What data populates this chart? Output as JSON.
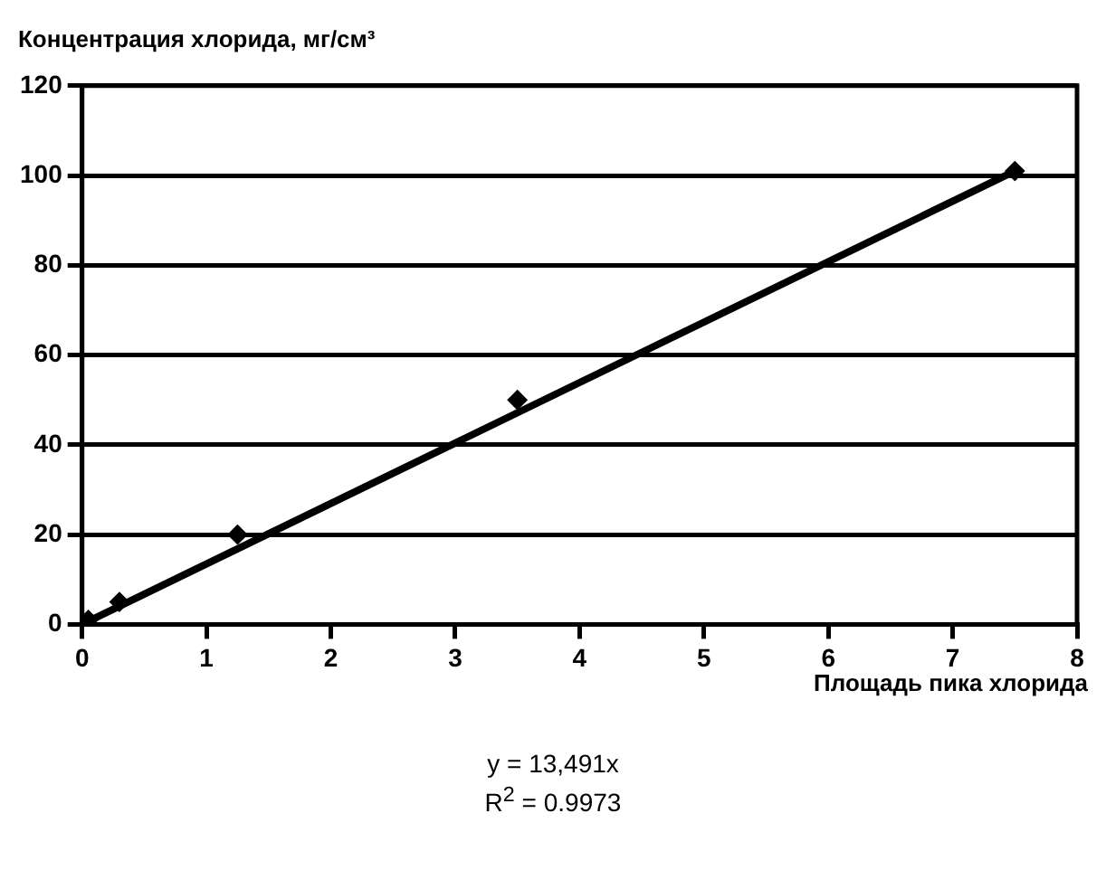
{
  "chart_data": {
    "type": "scatter",
    "ylabel": "Концентрация хлорида, мг/см³",
    "xlabel": "Площадь пика хлорида",
    "series": [
      {
        "type": "scatter",
        "color": "#000000",
        "marker": "diamond",
        "x": [
          0.05,
          0.3,
          1.25,
          3.5,
          7.5
        ],
        "values": [
          1,
          5,
          20,
          50,
          101
        ]
      },
      {
        "type": "line",
        "color": "#000000",
        "marker": "none",
        "x": [
          0,
          7.5
        ],
        "values": [
          0,
          101
        ]
      }
    ],
    "xlim": [
      0,
      8
    ],
    "xticks": [
      0,
      1,
      2,
      3,
      4,
      5,
      6,
      7,
      8
    ],
    "ylim": [
      0,
      120
    ],
    "yticks": [
      0,
      20,
      40,
      60,
      80,
      100,
      120
    ],
    "grid": "y",
    "legend": false,
    "annotations": [
      "y = 13,491x",
      "R$^{2}$ = 0.9973"
    ]
  }
}
